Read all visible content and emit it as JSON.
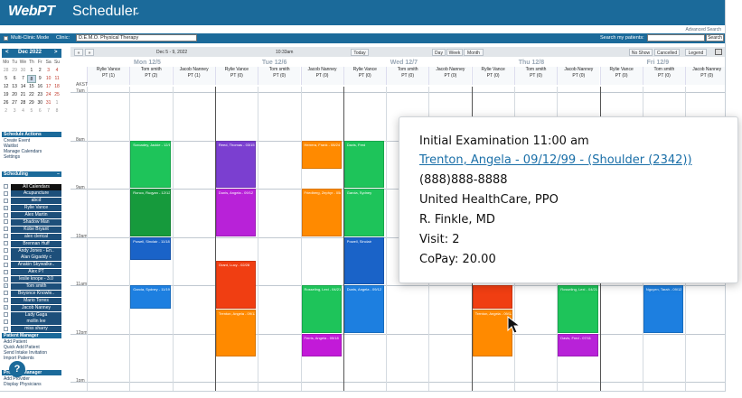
{
  "header": {
    "logo": "WebPT",
    "title": "Scheduler",
    "chevron": "⌄",
    "advanced_search": "Advanced Search"
  },
  "toolbar": {
    "multi_clinic_mode": "Multi-Clinic Mode",
    "clinic_label": "Clinic:",
    "clinic_value": "D.E.M.O. Physical Therapy",
    "search_label": "Search my patients:",
    "search_placeholder": "",
    "search_button": "Search"
  },
  "mini_calendar": {
    "month": "Dec 2022",
    "prev": "<",
    "next": ">",
    "dow": [
      "Mo",
      "Tu",
      "We",
      "Th",
      "Fr",
      "Sa",
      "Su"
    ],
    "weeks": [
      [
        "28",
        "29",
        "30",
        "1",
        "2",
        "3",
        "4"
      ],
      [
        "5",
        "6",
        "7",
        "8",
        "9",
        "10",
        "11"
      ],
      [
        "12",
        "13",
        "14",
        "15",
        "16",
        "17",
        "18"
      ],
      [
        "19",
        "20",
        "21",
        "22",
        "23",
        "24",
        "25"
      ],
      [
        "26",
        "27",
        "28",
        "29",
        "30",
        "31",
        "1"
      ],
      [
        "2",
        "3",
        "4",
        "5",
        "6",
        "7",
        "8"
      ]
    ]
  },
  "schedule_actions": {
    "title": "Schedule Actions",
    "items": [
      "Create Event",
      "Waitlist",
      "Manage Calendars",
      "Settings"
    ]
  },
  "scheduling": {
    "title": "Scheduling",
    "toggle": "−",
    "items": [
      {
        "label": "All Calendars",
        "checked": false
      },
      {
        "label": "Acupuncture",
        "checked": false
      },
      {
        "label": "abcd",
        "checked": false
      },
      {
        "label": "Rylie Vance",
        "checked": true
      },
      {
        "label": "Alex Martin",
        "checked": false
      },
      {
        "label": "Shadow Man",
        "checked": false
      },
      {
        "label": "Kobe Bryant",
        "checked": false
      },
      {
        "label": "alex clerical",
        "checked": false
      },
      {
        "label": "Brennan Huff",
        "checked": false
      },
      {
        "label": "Andy Jones - En..",
        "checked": false
      },
      {
        "label": "Alan Gigaddy c",
        "checked": false
      },
      {
        "label": "Anakin Skywalke..",
        "checked": false
      },
      {
        "label": "Alex PT",
        "checked": false
      },
      {
        "label": "leslie knope - 3.0",
        "checked": false
      },
      {
        "label": "Tom smith",
        "checked": true
      },
      {
        "label": "Beyonce Knowle..",
        "checked": false
      },
      {
        "label": "Mario Torres",
        "checked": false
      },
      {
        "label": "Jacob Nanney",
        "checked": true
      },
      {
        "label": "Lady Gaga",
        "checked": false
      },
      {
        "label": "mollin lee",
        "checked": false
      },
      {
        "label": "miss sharry",
        "checked": false
      }
    ]
  },
  "patient_manager": {
    "title": "Patient Manager",
    "items": [
      "Add Patient",
      "Quick Add Patient",
      "Send Intake Invitation",
      "Import Patients"
    ]
  },
  "provider_manager": {
    "title": "Provider Manager",
    "items": [
      "Add Provider",
      "Display Physicians"
    ]
  },
  "nav": {
    "prev": "«",
    "next": "»",
    "range": "Dec 5 - 9, 2022",
    "time": "10:33am",
    "today": "Today",
    "day": "Day",
    "week": "Week",
    "month": "Month",
    "no_show": "No Show",
    "cancelled": "Cancelled",
    "legend": "Legend"
  },
  "days": [
    "Mon 12/5",
    "Tue 12/6",
    "Wed 12/7",
    "Thu 12/8",
    "Fri 12/9"
  ],
  "columns": [
    [
      "Rylie Vance",
      "PT (1)"
    ],
    [
      "Tom smith",
      "PT (2)"
    ],
    [
      "Jacob Nanney",
      "PT (1)"
    ],
    [
      "Rylie Vance",
      "PT (0)"
    ],
    [
      "Tom smith",
      "PT (0)"
    ],
    [
      "Jacob Nanney",
      "PT (0)"
    ],
    [
      "Rylie Vance",
      "PT (0)"
    ],
    [
      "Tom smith",
      "PT (0)"
    ],
    [
      "Jacob Nanney",
      "PT (0)"
    ],
    [
      "Rylie Vance",
      "PT (0)"
    ],
    [
      "Tom smith",
      "PT (0)"
    ],
    [
      "Jacob Nanney",
      "PT (0)"
    ],
    [
      "Rylie Vance",
      "PT (0)"
    ],
    [
      "Tom smith",
      "PT (0)"
    ],
    [
      "Jacob Nanney",
      "PT (0)"
    ]
  ],
  "times": [
    "AKST",
    "7am",
    "8am",
    "9am",
    "10am",
    "11am",
    "12pm",
    "1pm"
  ],
  "appointments": [
    {
      "text": "Scroadey, Jackie - 12/12",
      "color": "#1ec45a"
    },
    {
      "text": "Ronco, Ruqyan - 12/12",
      "color": "#169a3c"
    },
    {
      "text": "Powell, Sinclair - 11/18",
      "color": "#1a63c8"
    },
    {
      "text": "Garcia, Sydney - 11/19",
      "color": "#1d7fe0"
    },
    {
      "text": "Reed, Thomas - 03/15",
      "color": "#7b3fd0"
    },
    {
      "text": "Dunis, Angela - 09/12",
      "color": "#b822d8"
    },
    {
      "text": "Grant, Lucy - 02/28",
      "color": "#f03e12"
    },
    {
      "text": "Trenton, Angela - 09/12",
      "color": "#ff8a00"
    },
    {
      "text": "Herrera, Frank - 08/24",
      "color": "#ff8a00"
    },
    {
      "text": "Friedberg, Zephyr - 05/15",
      "color": "#ff8a00"
    },
    {
      "text": "Rosseling, Lexi - 04/21",
      "color": "#1ec45a"
    },
    {
      "text": "Ferris, Angela - 05/18",
      "color": "#c21ad8"
    },
    {
      "text": "Davis, Fred",
      "color": "#1ec45a"
    },
    {
      "text": "Garcia, Sydney",
      "color": "#1ec45a"
    },
    {
      "text": "Powell, Sinclair",
      "color": "#1a63c8"
    },
    {
      "text": "Dunis, Angela - 09/12",
      "color": "#1d7fe0"
    },
    {
      "text": "",
      "color": "#f03e12"
    },
    {
      "text": "Trenton, Angela - 09/12",
      "color": "#ff8a00"
    },
    {
      "text": "Rosseling, Lexi - 04/21",
      "color": "#1ec45a"
    },
    {
      "text": "Davis, Fred - 07/11",
      "color": "#b822d8"
    },
    {
      "text": "Nguyen, Tarah - 09/12",
      "color": "#1d7fe0"
    }
  ],
  "popup": {
    "title": "Initial Examination 11:00 am",
    "patient_link": "Trenton, Angela - 09/12/99 - (Shoulder (2342))",
    "phone": "(888)888-8888",
    "insurance": "United HealthCare, PPO",
    "physician": "R. Finkle, MD",
    "visit": "Visit: 2",
    "copay": "CoPay: 20.00"
  }
}
